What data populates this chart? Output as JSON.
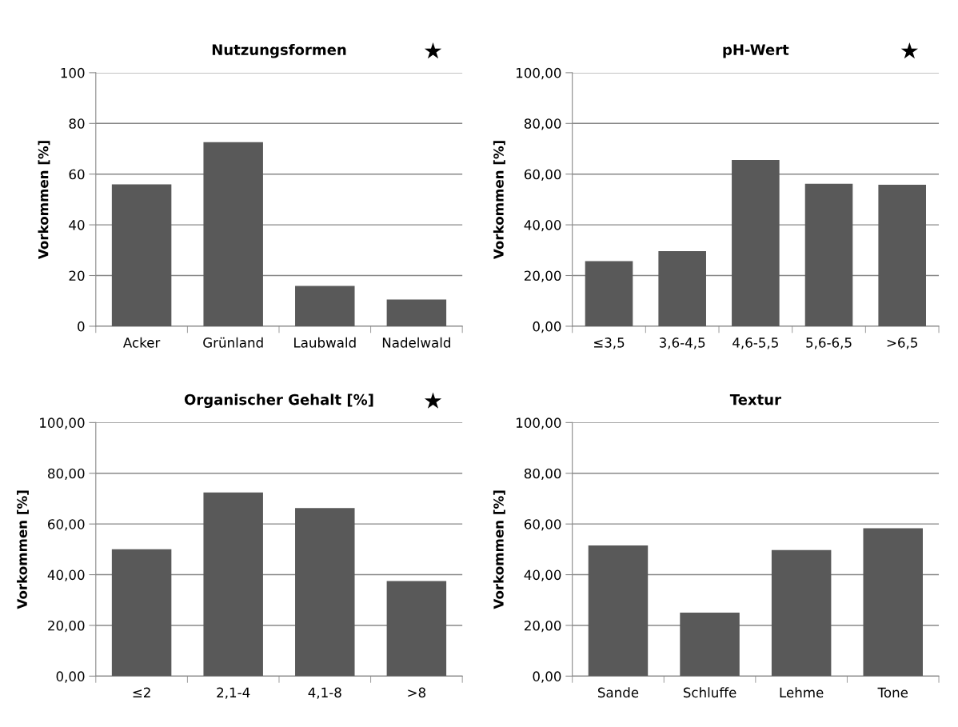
{
  "chart_data": [
    {
      "type": "bar",
      "title": "Nutzungsformen",
      "ylabel": "Vorkommen [%]",
      "categories": [
        "Acker",
        "Grünland",
        "Laubwald",
        "Nadelwald"
      ],
      "values": [
        56,
        72.6,
        15.9,
        10.5
      ],
      "color": "#595959",
      "ylim": [
        0,
        100
      ],
      "yticks": [
        0,
        20,
        40,
        60,
        80,
        100
      ],
      "grid": "y",
      "annotations": [
        "★"
      ]
    },
    {
      "type": "bar",
      "title": "pH-Wert",
      "ylabel": "Vorkommen [%]",
      "categories": [
        "≤3,5",
        "3,6-4,5",
        "4,6-5,5",
        "5,6-6,5",
        ">6,5"
      ],
      "values": [
        25.7,
        29.6,
        65.6,
        56.2,
        55.8
      ],
      "color": "#595959",
      "ylim": [
        0,
        100
      ],
      "yticks": [
        {
          "value": 0,
          "label": "0,00"
        },
        {
          "value": 20,
          "label": "20,00"
        },
        {
          "value": 40,
          "label": "40,00"
        },
        {
          "value": 60,
          "label": "60,00"
        },
        {
          "value": 80,
          "label": "80,00"
        },
        {
          "value": 100,
          "label": "100,00"
        }
      ],
      "grid": "y",
      "annotations": [
        "★"
      ]
    },
    {
      "type": "bar",
      "title": "Organischer Gehalt [%]",
      "ylabel": "Vorkommen [%]",
      "categories": [
        "≤2",
        "2,1-4",
        "4,1-8",
        ">8"
      ],
      "values": [
        50.0,
        72.4,
        66.3,
        37.5
      ],
      "color": "#595959",
      "ylim": [
        0,
        100
      ],
      "yticks": [
        {
          "value": 0,
          "label": "0,00"
        },
        {
          "value": 20,
          "label": "20,00"
        },
        {
          "value": 40,
          "label": "40,00"
        },
        {
          "value": 60,
          "label": "60,00"
        },
        {
          "value": 80,
          "label": "80,00"
        },
        {
          "value": 100,
          "label": "100,00"
        }
      ],
      "grid": "y",
      "annotations": [
        "★"
      ]
    },
    {
      "type": "bar",
      "title": "Textur",
      "ylabel": "Vorkommen [%]",
      "categories": [
        "Sande",
        "Schluffe",
        "Lehme",
        "Tone"
      ],
      "values": [
        51.5,
        25.0,
        49.7,
        58.3
      ],
      "color": "#595959",
      "ylim": [
        0,
        100
      ],
      "yticks": [
        {
          "value": 0,
          "label": "0,00"
        },
        {
          "value": 20,
          "label": "20,00"
        },
        {
          "value": 40,
          "label": "40,00"
        },
        {
          "value": 60,
          "label": "60,00"
        },
        {
          "value": 80,
          "label": "80,00"
        },
        {
          "value": 100,
          "label": "100,00"
        }
      ],
      "grid": "y"
    }
  ]
}
